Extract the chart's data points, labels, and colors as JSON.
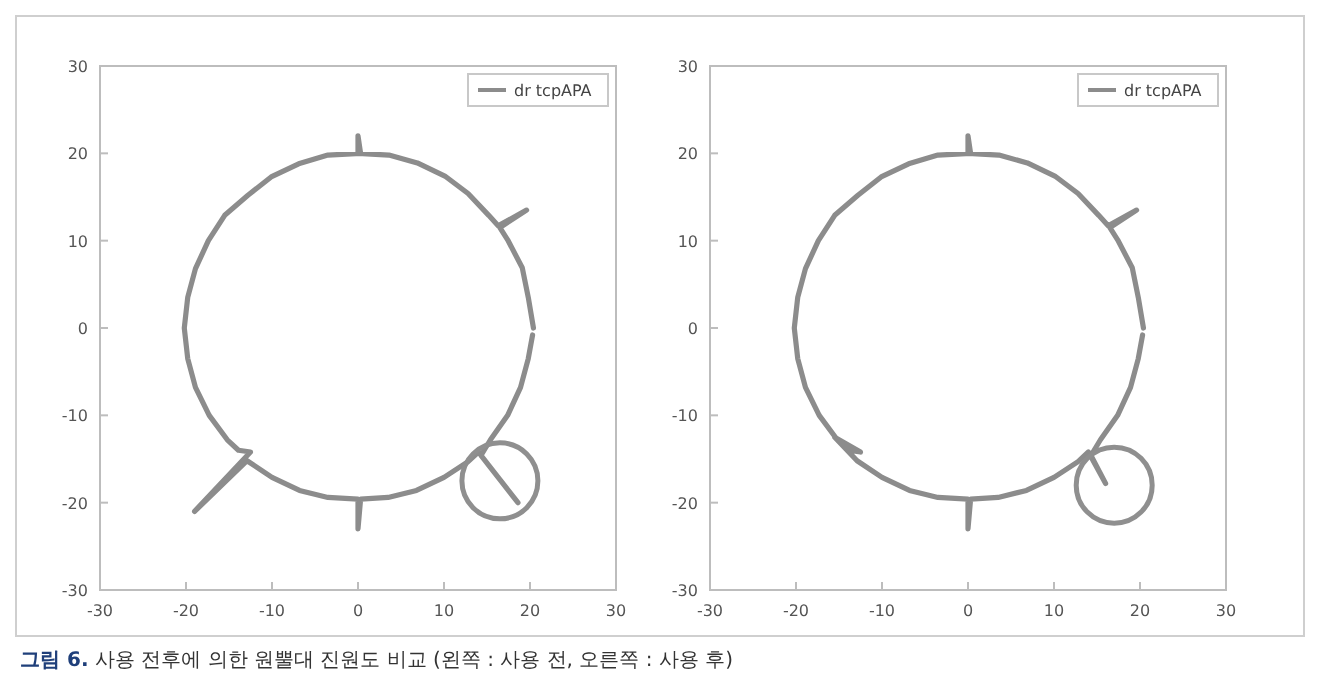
{
  "chart_data": [
    {
      "type": "line",
      "xlim": [
        -30,
        30
      ],
      "ylim": [
        -30,
        30
      ],
      "xticks": [
        -30,
        -20,
        -10,
        0,
        10,
        20,
        30
      ],
      "yticks": [
        -30,
        -20,
        -10,
        0,
        10,
        20,
        30
      ],
      "legend": "top right",
      "series": [
        {
          "name": "dr tcpAPA",
          "color": "#8c8c8c",
          "x": [
            20.4,
            19.8,
            19.1,
            17.4,
            16.5,
            19.6,
            16.3,
            15.2,
            12.8,
            10.1,
            6.9,
            3.6,
            0,
            0,
            0.3,
            -3.5,
            -6.9,
            -10.1,
            -12.8,
            -15.5,
            -17.4,
            -18.9,
            -19.8,
            -20.2,
            -19.8,
            -18.9,
            -17.3,
            -15.2,
            -13.9,
            -12.5,
            -19,
            -12.9,
            -10,
            -6.8,
            -3.5,
            0,
            0,
            0.3,
            3.5,
            6.8,
            10,
            12.8,
            14,
            18.6,
            14.3,
            15.4,
            17.4,
            18.9,
            19.8,
            20.3
          ],
          "values": [
            0,
            3.5,
            6.9,
            10.1,
            11.5,
            13.5,
            11.7,
            12.9,
            15.4,
            17.4,
            18.9,
            19.8,
            20,
            22,
            20,
            19.8,
            18.8,
            17.3,
            15.2,
            12.9,
            10,
            6.8,
            3.5,
            0,
            -3.5,
            -6.8,
            -10,
            -12.8,
            -14,
            -14.2,
            -21,
            -15.2,
            -17.1,
            -18.6,
            -19.4,
            -19.6,
            -23,
            -19.6,
            -19.4,
            -18.6,
            -17.1,
            -15.3,
            -14.2,
            -20,
            -14.6,
            -12.8,
            -10,
            -6.8,
            -3.5,
            -0.8
          ]
        }
      ],
      "annotations": [
        "**그림 6.** 사용 전후에 의한 원뿔대 진원도 비교 (왼쪽 : 사용 전, 오른쪽 : 사용 후)"
      ]
    },
    {
      "type": "line",
      "xlim": [
        -30,
        30
      ],
      "ylim": [
        -30,
        30
      ],
      "xticks": [
        -30,
        -20,
        -10,
        0,
        10,
        20,
        30
      ],
      "yticks": [
        -30,
        -20,
        -10,
        0,
        10,
        20,
        30
      ],
      "legend": "top right",
      "series": [
        {
          "name": "dr tcpAPA",
          "color": "#8c8c8c",
          "x": [
            20.4,
            19.8,
            19.1,
            17.4,
            16.5,
            19.6,
            16.3,
            15.2,
            12.8,
            10.1,
            6.9,
            3.6,
            0,
            0,
            0.3,
            -3.5,
            -6.9,
            -10.1,
            -12.8,
            -15.5,
            -17.4,
            -18.9,
            -19.8,
            -20.2,
            -19.8,
            -18.9,
            -17.3,
            -15.2,
            -13.9,
            -12.5,
            -15.5,
            -12.9,
            -10,
            -6.8,
            -3.5,
            0,
            0,
            0.3,
            3.5,
            6.8,
            10,
            12.8,
            14,
            16,
            14.3,
            15.4,
            17.4,
            18.9,
            19.8,
            20.3
          ],
          "values": [
            0,
            3.5,
            6.9,
            10.1,
            11.5,
            13.5,
            11.7,
            12.9,
            15.4,
            17.4,
            18.9,
            19.8,
            20,
            22,
            20,
            19.8,
            18.8,
            17.3,
            15.2,
            12.9,
            10,
            6.8,
            3.5,
            0,
            -3.5,
            -6.8,
            -10,
            -12.8,
            -14,
            -14.2,
            -12.5,
            -15.2,
            -17.1,
            -18.6,
            -19.4,
            -19.6,
            -23,
            -19.6,
            -19.4,
            -18.6,
            -17.1,
            -15.3,
            -14.2,
            -17.8,
            -14.6,
            -12.8,
            -10,
            -6.8,
            -3.5,
            -0.8
          ]
        }
      ]
    }
  ]
}
